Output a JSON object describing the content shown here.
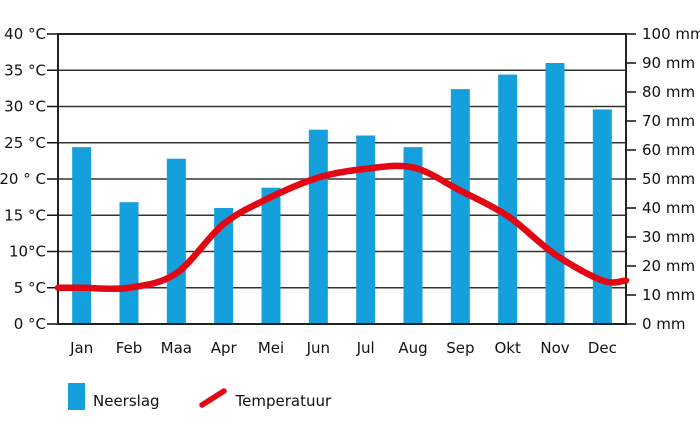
{
  "chart_data": {
    "type": "combo",
    "title": "",
    "categories": [
      "Jan",
      "Feb",
      "Maa",
      "Apr",
      "Mei",
      "Jun",
      "Jul",
      "Aug",
      "Sep",
      "Okt",
      "Nov",
      "Dec"
    ],
    "series": [
      {
        "name": "Neerslag",
        "type": "bar",
        "unit": "mm",
        "axis": "right",
        "color": "#14A0DC",
        "values": [
          61,
          42,
          57,
          40,
          47,
          67,
          65,
          61,
          81,
          86,
          90,
          74
        ]
      },
      {
        "name": "Temperatuur",
        "type": "line",
        "unit": "°C",
        "axis": "left",
        "color": "#E30613",
        "values": [
          5.0,
          5.0,
          7.0,
          13.8,
          17.5,
          20.2,
          21.4,
          21.6,
          18.4,
          14.9,
          9.6,
          6.0
        ]
      }
    ],
    "axes": {
      "left": {
        "unit": "°C",
        "min": 0,
        "max": 40,
        "step": 5,
        "tick_labels": [
          "40 °C",
          "35 °C",
          "30 °C",
          "25 °C",
          "20 ° C",
          "15 °C",
          "10°C",
          "5 °C",
          "0 °C"
        ]
      },
      "right": {
        "unit": "mm",
        "min": 0,
        "max": 100,
        "step": 10,
        "tick_labels": [
          "100 mm",
          "90 mm",
          "80 mm",
          "70 mm",
          "60 mm",
          "50 mm",
          "40 mm",
          "30 mm",
          "20 mm",
          "10 mm",
          "0 mm"
        ]
      }
    },
    "grid": true,
    "grid_color": "#333333",
    "border_color": "#222222",
    "legend_position": "bottom"
  },
  "legend": {
    "items": [
      {
        "label": "Neerslag",
        "swatch": "bar",
        "color": "#14A0DC"
      },
      {
        "label": "Temperatuur",
        "swatch": "line",
        "color": "#E30613"
      }
    ]
  }
}
